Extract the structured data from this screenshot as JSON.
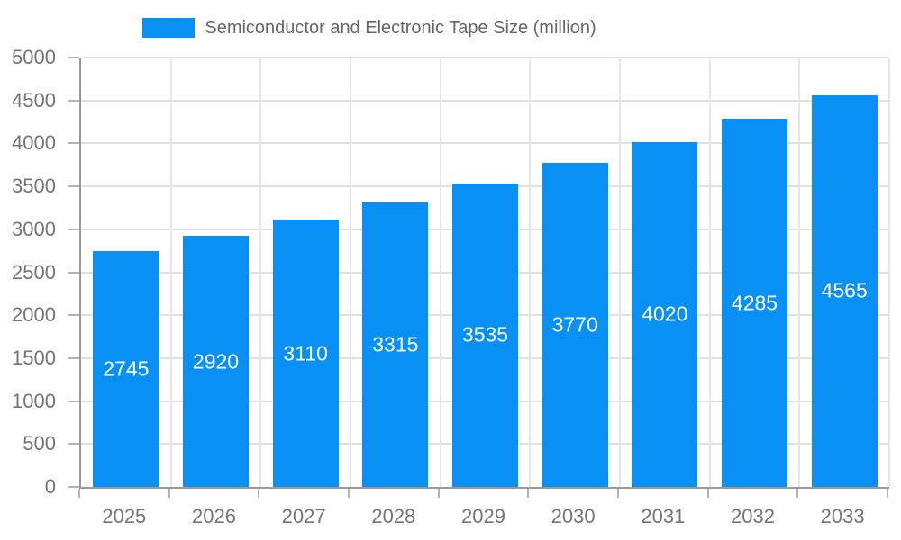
{
  "chart_data": {
    "type": "bar",
    "title": "Semiconductor and Electronic Tape Size (million)",
    "categories": [
      "2025",
      "2026",
      "2027",
      "2028",
      "2029",
      "2030",
      "2031",
      "2032",
      "2033"
    ],
    "values": [
      2745,
      2920,
      3110,
      3315,
      3535,
      3770,
      4020,
      4285,
      4565
    ],
    "series_name": "Semiconductor and Electronic Tape Size (million)",
    "xlabel": "",
    "ylabel": "",
    "ylim": [
      0,
      5000
    ],
    "ytick_step": 500,
    "yticks": [
      0,
      500,
      1000,
      1500,
      2000,
      2500,
      3000,
      3500,
      4000,
      4500,
      5000
    ],
    "grid": true,
    "legend_position": "top",
    "bar_labels_inside": true
  },
  "colors": {
    "bar": "#0890f5",
    "bar_label": "#ffffff",
    "title_text": "#666666",
    "tick_text": "#757575",
    "grid_h": "#e0e0e0",
    "grid_v": "#e6e6e6",
    "axis_line": "#999999",
    "tick_mark": "#b3b3b3",
    "background": "#ffffff"
  }
}
